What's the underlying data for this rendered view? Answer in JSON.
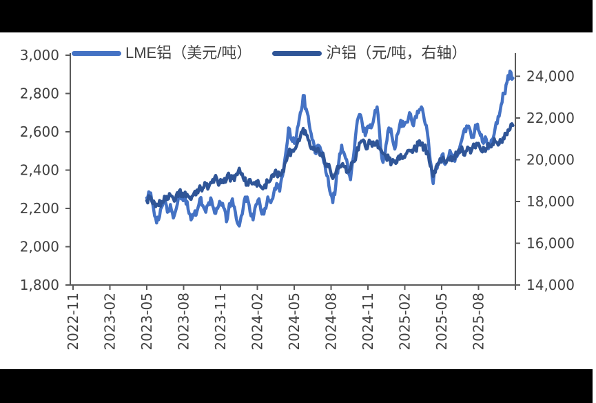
{
  "page": {
    "background_color": "#ffffff",
    "letterbox_color": "#000000",
    "axis_line_color": "#595959",
    "axis_text_color": "#404040"
  },
  "chart_data": {
    "type": "line",
    "title": "",
    "legend_position": "top",
    "grid": false,
    "legend": [
      {
        "label": "LME铝（美元/吨）",
        "color": "#4472C4",
        "axis": "left"
      },
      {
        "label": "沪铝（元/吨，右轴）",
        "color": "#2F5597",
        "axis": "right"
      }
    ],
    "left_axis": {
      "min": 1800,
      "max": 3000,
      "step": 200,
      "tick_labels": [
        "3,000",
        "2,800",
        "2,600",
        "2,400",
        "2,200",
        "2,000",
        "1,800"
      ]
    },
    "right_axis": {
      "min": 14000,
      "max": 24000,
      "step": 2000,
      "tick_labels": [
        "24,000",
        "22,000",
        "20,000",
        "18,000",
        "16,000",
        "14,000"
      ]
    },
    "x_axis": {
      "tick_labels": [
        "2022-11",
        "2023-02",
        "2023-05",
        "2023-08",
        "2023-11",
        "2024-02",
        "2024-05",
        "2024-08",
        "2024-11",
        "2025-02",
        "2025-05",
        "2025-08"
      ],
      "months_per_tick": 3,
      "total_months_span": 36
    },
    "x_start_month": 6.0,
    "x_end_month": 35.8,
    "series": [
      {
        "name": "LME铝（美元/吨）",
        "axis": "left",
        "color": "#4472C4",
        "values": [
          2255,
          2280,
          2225,
          2150,
          2140,
          2205,
          2245,
          2180,
          2220,
          2150,
          2200,
          2290,
          2255,
          2270,
          2195,
          2140,
          2165,
          2185,
          2250,
          2215,
          2180,
          2230,
          2240,
          2175,
          2200,
          2230,
          2205,
          2130,
          2225,
          2250,
          2180,
          2115,
          2160,
          2240,
          2260,
          2180,
          2140,
          2220,
          2250,
          2170,
          2200,
          2260,
          2230,
          2280,
          2330,
          2290,
          2370,
          2480,
          2620,
          2560,
          2540,
          2620,
          2700,
          2790,
          2720,
          2640,
          2560,
          2490,
          2530,
          2500,
          2440,
          2370,
          2290,
          2230,
          2320,
          2440,
          2530,
          2480,
          2430,
          2350,
          2470,
          2620,
          2690,
          2640,
          2580,
          2630,
          2620,
          2680,
          2730,
          2560,
          2440,
          2530,
          2620,
          2580,
          2510,
          2590,
          2660,
          2630,
          2650,
          2700,
          2640,
          2680,
          2700,
          2730,
          2660,
          2600,
          2450,
          2330,
          2420,
          2440,
          2480,
          2430,
          2460,
          2490,
          2450,
          2470,
          2520,
          2580,
          2600,
          2630,
          2570,
          2600,
          2640,
          2580,
          2540,
          2560,
          2520,
          2560,
          2620,
          2680,
          2740,
          2800,
          2860,
          2917,
          2880
        ]
      },
      {
        "name": "沪铝（元/吨，右轴）",
        "axis": "right",
        "color": "#2F5597",
        "values": [
          18050,
          18200,
          17900,
          17750,
          17800,
          18000,
          18250,
          18100,
          18300,
          18150,
          18300,
          18500,
          18400,
          18450,
          18250,
          18100,
          18400,
          18550,
          18750,
          18650,
          18800,
          18700,
          18900,
          19150,
          18950,
          19050,
          18900,
          19050,
          19200,
          19100,
          19250,
          19450,
          19300,
          19000,
          18900,
          19050,
          18850,
          18950,
          18800,
          18650,
          18800,
          18950,
          19050,
          19200,
          19350,
          19250,
          19500,
          19900,
          20300,
          20450,
          20500,
          20800,
          21100,
          21500,
          21200,
          20900,
          20600,
          20450,
          20550,
          20300,
          20100,
          19800,
          19600,
          19100,
          19350,
          19600,
          19750,
          19650,
          19450,
          19550,
          19900,
          20300,
          20800,
          20900,
          20650,
          20750,
          20850,
          20700,
          20900,
          20500,
          20300,
          20150,
          20000,
          19900,
          19950,
          20100,
          20250,
          20150,
          20300,
          20450,
          20350,
          20550,
          20700,
          20800,
          20550,
          20400,
          19700,
          19200,
          19650,
          19850,
          20000,
          19900,
          20050,
          20150,
          20100,
          20200,
          20350,
          20450,
          20400,
          20550,
          20450,
          20600,
          20700,
          20500,
          20600,
          20550,
          20650,
          20750,
          20850,
          20700,
          20900,
          21000,
          21200,
          21450,
          21640
        ]
      }
    ]
  }
}
